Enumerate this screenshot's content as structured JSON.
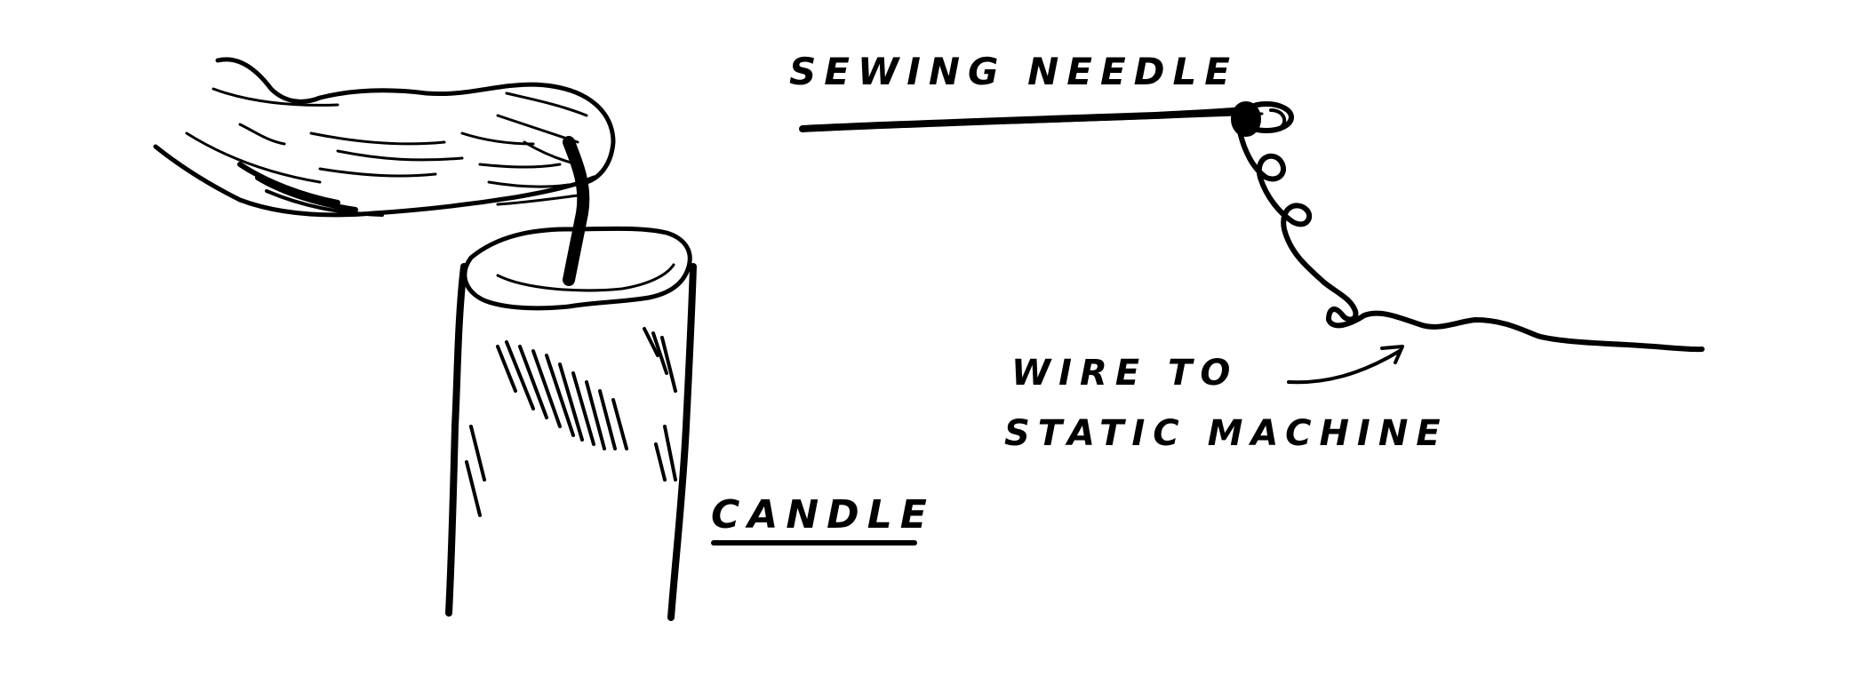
{
  "labels": {
    "needle": "SEWING NEEDLE",
    "wire_line1": "WIRE TO",
    "wire_line2": "STATIC MACHINE",
    "candle": "CANDLE"
  },
  "colors": {
    "ink": "#000000",
    "paper": "#ffffff"
  }
}
